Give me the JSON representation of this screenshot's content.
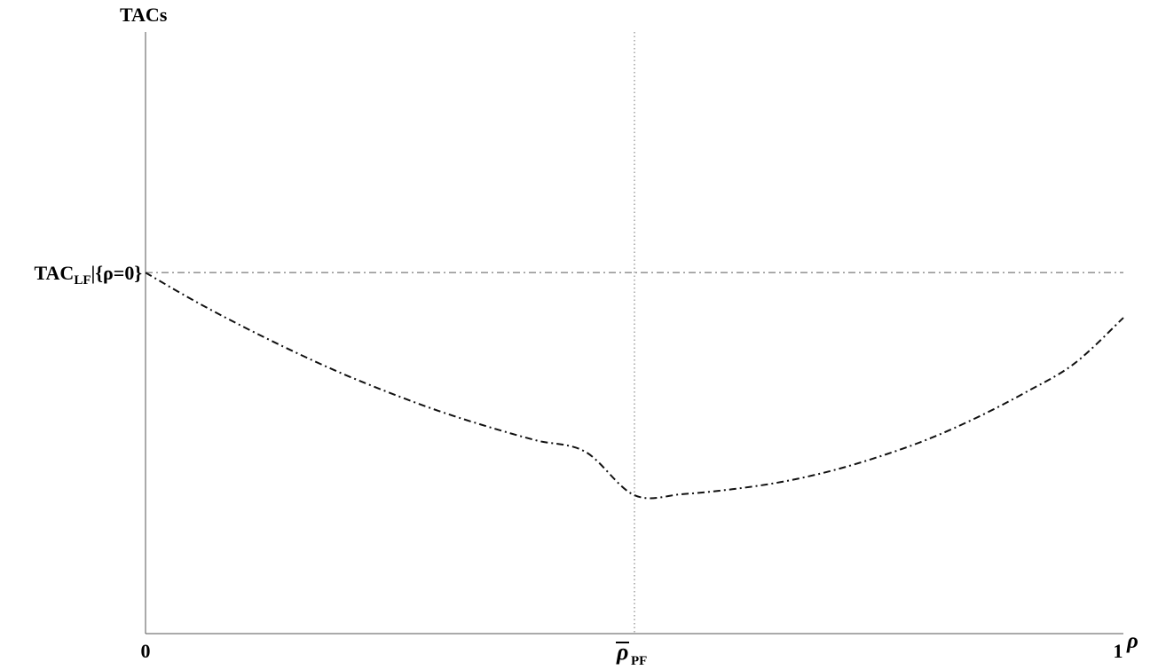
{
  "chart_data": {
    "type": "line",
    "ylabel": "TACs",
    "xlabel": "ρ",
    "xlim": [
      0,
      1
    ],
    "ylim": [
      0,
      1
    ],
    "grid": false,
    "x_ticks": [
      {
        "x": 0,
        "label": "0"
      },
      {
        "x": 0.5,
        "label": "ρ",
        "overbar": true,
        "subscript": "PF"
      },
      {
        "x": 1,
        "label": "1"
      }
    ],
    "y_reference": {
      "y": 0.6,
      "label": "TAC",
      "subscript": "LF",
      "suffix": "|{ρ=0}"
    },
    "x_reference": {
      "x": 0.5
    },
    "series": [
      {
        "x": [
          0,
          0.05,
          0.1,
          0.15,
          0.2,
          0.25,
          0.3,
          0.35,
          0.4,
          0.45,
          0.5,
          0.55,
          0.6,
          0.65,
          0.7,
          0.75,
          0.8,
          0.85,
          0.9,
          0.95,
          1.0
        ],
        "y": [
          0.6,
          0.553,
          0.51,
          0.47,
          0.433,
          0.4,
          0.37,
          0.344,
          0.321,
          0.302,
          0.23,
          0.232,
          0.24,
          0.252,
          0.27,
          0.294,
          0.323,
          0.359,
          0.401,
          0.449,
          0.525
        ]
      }
    ]
  }
}
